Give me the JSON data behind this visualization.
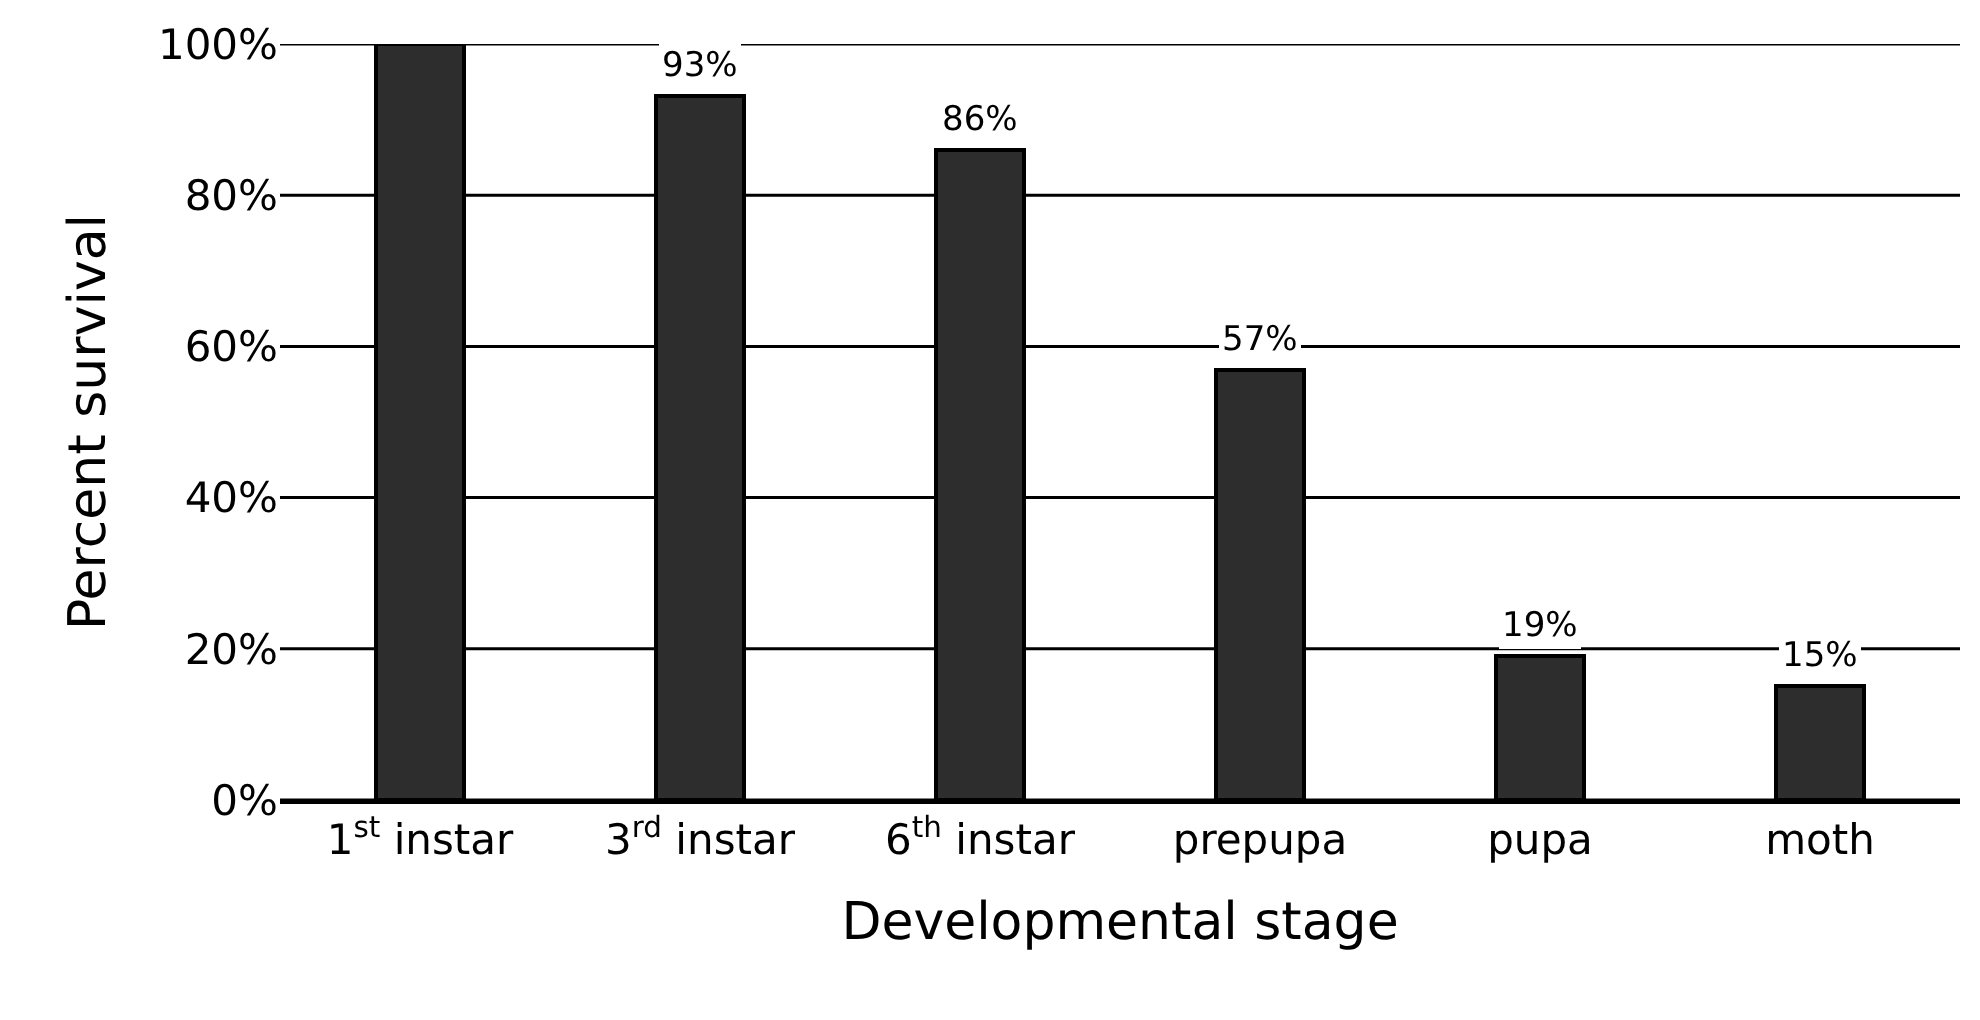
{
  "chart_data": {
    "type": "bar",
    "xlabel": "Developmental stage",
    "ylabel": "Percent survival",
    "categories": [
      "1$^{st}$ instar",
      "3$^{rd}$ instar",
      "6$^{th}$ instar",
      "prepupa",
      "pupa",
      "moth"
    ],
    "values": [
      100,
      93,
      86,
      57,
      19,
      15
    ],
    "value_labels": [
      null,
      "93%",
      "86%",
      "57%",
      "19%",
      "15%"
    ],
    "color": "#2d2d2d",
    "ylim": [
      0,
      100
    ],
    "yticks": [
      {
        "value": 0,
        "label": "0%"
      },
      {
        "value": 20,
        "label": "20%"
      },
      {
        "value": 40,
        "label": "40%"
      },
      {
        "value": 60,
        "label": "60%"
      },
      {
        "value": 80,
        "label": "80%"
      },
      {
        "value": 100,
        "label": "100%"
      }
    ],
    "grid": "y",
    "legend": false
  }
}
